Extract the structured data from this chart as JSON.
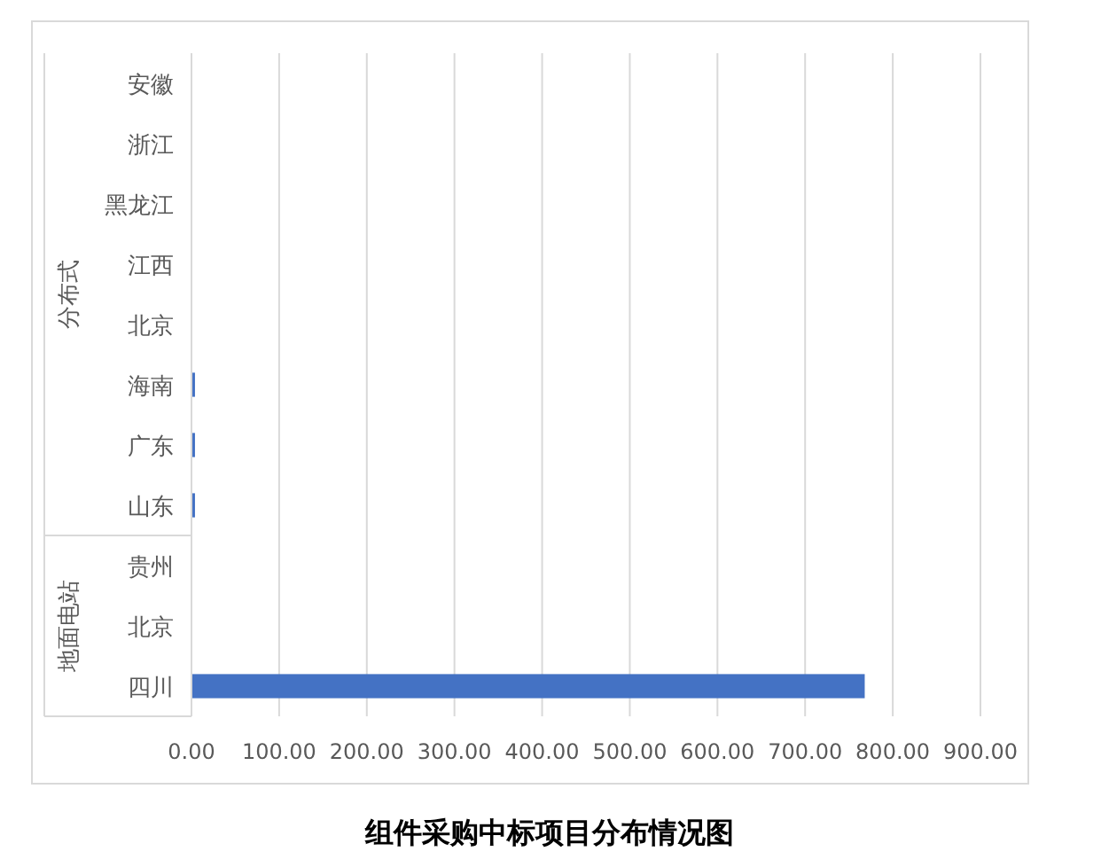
{
  "chart_data": {
    "type": "bar",
    "orientation": "horizontal",
    "title": "组件采购中标项目分布情况图",
    "categories": [
      "安徽",
      "浙江",
      "黑龙江",
      "江西",
      "北京",
      "海南",
      "广东",
      "山东",
      "贵州",
      "北京",
      "四川"
    ],
    "values": [
      0,
      0,
      0,
      0,
      0,
      4,
      4,
      4,
      0,
      0,
      768
    ],
    "color": "#4472c4",
    "xlim": [
      0,
      900
    ],
    "xticks": [
      {
        "value": 0,
        "label": "0.00"
      },
      {
        "value": 100,
        "label": "100.00"
      },
      {
        "value": 200,
        "label": "200.00"
      },
      {
        "value": 300,
        "label": "300.00"
      },
      {
        "value": 400,
        "label": "400.00"
      },
      {
        "value": 500,
        "label": "500.00"
      },
      {
        "value": 600,
        "label": "600.00"
      },
      {
        "value": 700,
        "label": "700.00"
      },
      {
        "value": 800,
        "label": "800.00"
      },
      {
        "value": 900,
        "label": "900.00"
      }
    ],
    "grid": "x",
    "annotations": [
      "分布式",
      "地面电站"
    ]
  }
}
